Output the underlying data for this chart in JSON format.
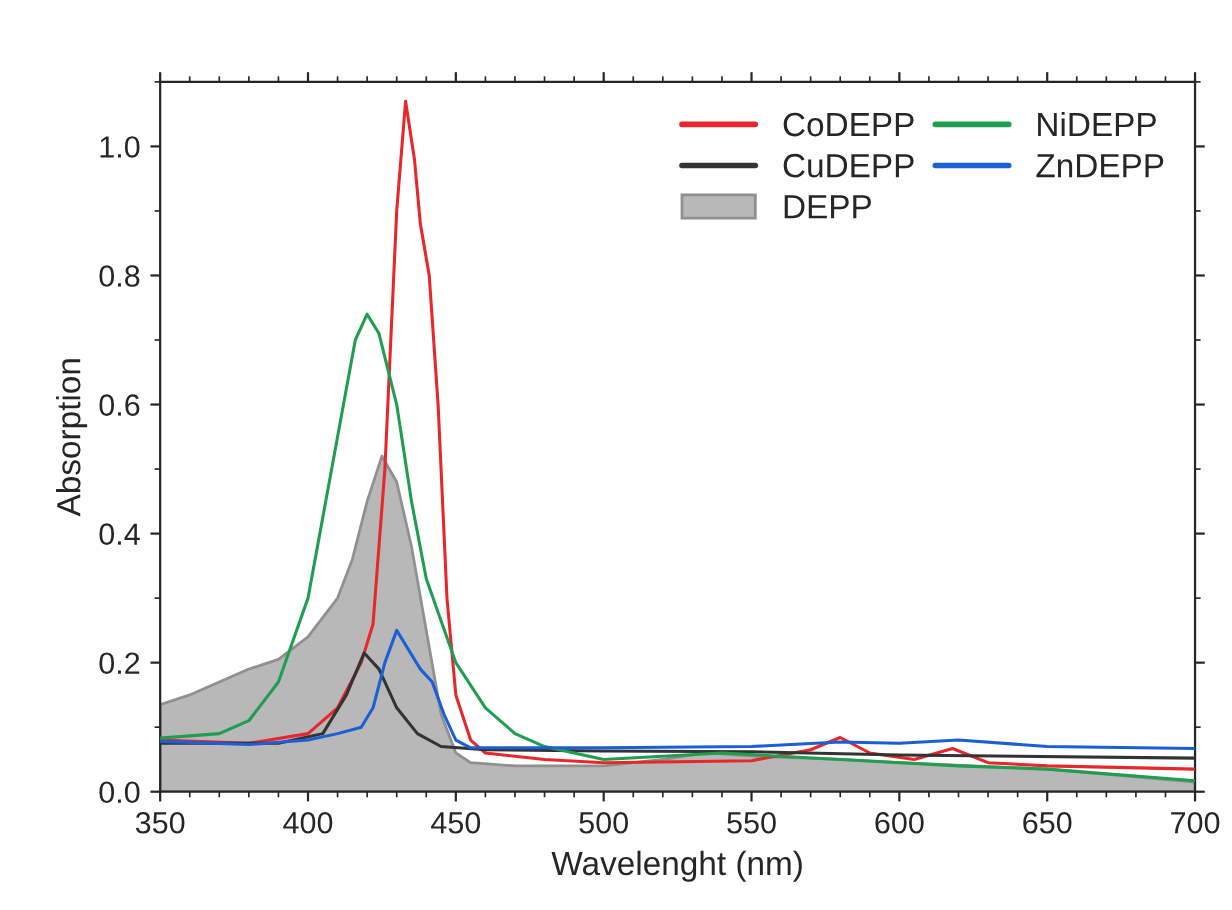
{
  "chart_data": {
    "type": "line",
    "xlabel": "Wavelenght (nm)",
    "ylabel": "Absorption",
    "xlim": [
      350,
      700
    ],
    "xticks": [
      350,
      400,
      450,
      500,
      550,
      600,
      650,
      700
    ],
    "ylim": [
      0.0,
      1.1
    ],
    "yticks": [
      {
        "value": 0,
        "label": "0.0"
      },
      0.2,
      0.4,
      0.6,
      0.8,
      {
        "value": 1,
        "label": "1.0"
      }
    ],
    "grid": false,
    "legend": "top right",
    "series": [
      {
        "name": "CoDEPP",
        "color": "#e8262b",
        "x": [
          350,
          380,
          400,
          410,
          418,
          422,
          426,
          430,
          433,
          436,
          438,
          441,
          444,
          447,
          450,
          455,
          460,
          480,
          500,
          550,
          570,
          580,
          590,
          605,
          618,
          630,
          650,
          700
        ],
        "values": [
          0.08,
          0.075,
          0.09,
          0.13,
          0.2,
          0.26,
          0.5,
          0.9,
          1.07,
          0.98,
          0.88,
          0.8,
          0.6,
          0.3,
          0.15,
          0.08,
          0.06,
          0.05,
          0.045,
          0.048,
          0.065,
          0.084,
          0.06,
          0.05,
          0.067,
          0.045,
          0.04,
          0.035
        ]
      },
      {
        "name": "CuDEPP",
        "color": "#333333",
        "x": [
          350,
          390,
          405,
          413,
          419,
          424,
          430,
          437,
          445,
          460,
          500,
          550,
          600,
          700
        ],
        "values": [
          0.075,
          0.075,
          0.09,
          0.15,
          0.215,
          0.19,
          0.13,
          0.09,
          0.07,
          0.065,
          0.063,
          0.062,
          0.057,
          0.052
        ]
      },
      {
        "name": "DEPP",
        "type": "area",
        "color": "#b8b8b8",
        "x": [
          350,
          360,
          370,
          380,
          390,
          400,
          410,
          415,
          420,
          425,
          430,
          435,
          440,
          445,
          450,
          455,
          470,
          500,
          520,
          535,
          550,
          580,
          600,
          650,
          700
        ],
        "values": [
          0.135,
          0.15,
          0.17,
          0.19,
          0.205,
          0.24,
          0.3,
          0.36,
          0.45,
          0.52,
          0.48,
          0.38,
          0.25,
          0.12,
          0.06,
          0.045,
          0.04,
          0.04,
          0.05,
          0.06,
          0.055,
          0.05,
          0.045,
          0.035,
          0.015
        ]
      },
      {
        "name": "NiDEPP",
        "color": "#1f9e50",
        "x": [
          350,
          370,
          380,
          390,
          400,
          410,
          416,
          420,
          424,
          430,
          435,
          440,
          450,
          460,
          470,
          480,
          500,
          520,
          540,
          580,
          620,
          650,
          700
        ],
        "values": [
          0.083,
          0.09,
          0.11,
          0.17,
          0.3,
          0.55,
          0.7,
          0.74,
          0.71,
          0.6,
          0.45,
          0.33,
          0.2,
          0.13,
          0.09,
          0.07,
          0.05,
          0.055,
          0.06,
          0.05,
          0.04,
          0.035,
          0.017
        ]
      },
      {
        "name": "ZnDEPP",
        "color": "#1a5fd6",
        "x": [
          350,
          380,
          400,
          410,
          418,
          422,
          426,
          430,
          434,
          438,
          442,
          446,
          450,
          455,
          500,
          550,
          580,
          600,
          620,
          650,
          700
        ],
        "values": [
          0.078,
          0.073,
          0.08,
          0.09,
          0.1,
          0.13,
          0.2,
          0.25,
          0.22,
          0.19,
          0.17,
          0.12,
          0.08,
          0.068,
          0.068,
          0.07,
          0.077,
          0.075,
          0.08,
          0.07,
          0.067
        ]
      }
    ]
  }
}
